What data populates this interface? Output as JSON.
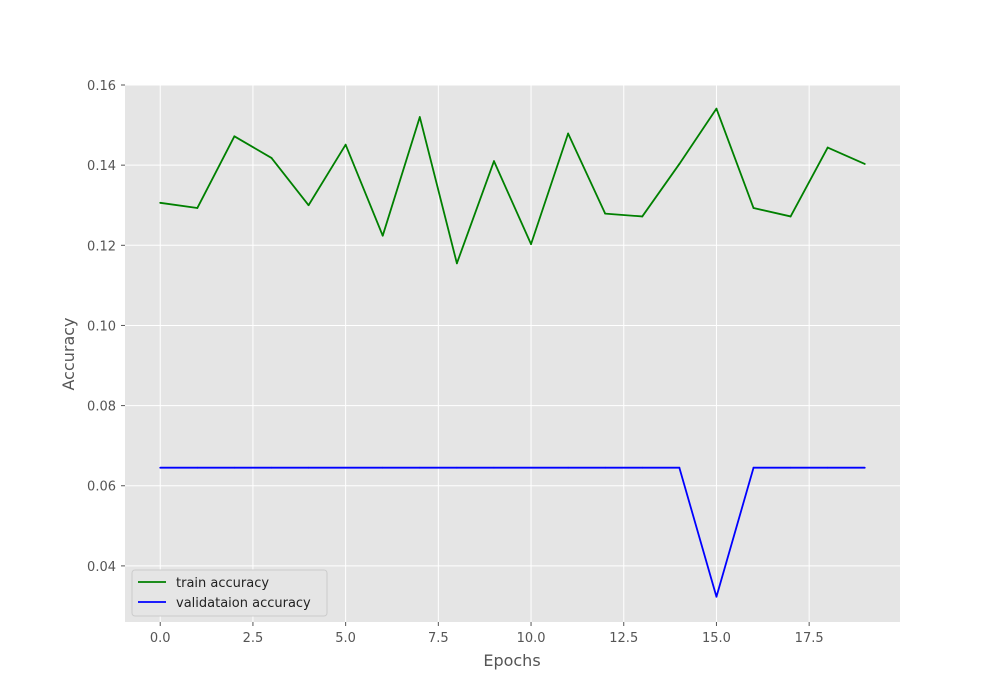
{
  "chart_data": {
    "type": "line",
    "title": "",
    "xlabel": "Epochs",
    "ylabel": "Accuracy",
    "xlim": [
      -0.95,
      19.95
    ],
    "ylim": [
      0.026,
      0.16
    ],
    "x_ticks": [
      0.0,
      2.5,
      5.0,
      7.5,
      10.0,
      12.5,
      15.0,
      17.5
    ],
    "x_tick_labels": [
      "0.0",
      "2.5",
      "5.0",
      "7.5",
      "10.0",
      "12.5",
      "15.0",
      "17.5"
    ],
    "y_ticks": [
      0.04,
      0.06,
      0.08,
      0.1,
      0.12,
      0.14,
      0.16
    ],
    "y_tick_labels": [
      "0.04",
      "0.06",
      "0.08",
      "0.10",
      "0.12",
      "0.14",
      "0.16"
    ],
    "grid": true,
    "legend_position": "lower-left",
    "x": [
      0,
      1,
      2,
      3,
      4,
      5,
      6,
      7,
      8,
      9,
      10,
      11,
      12,
      13,
      14,
      15,
      16,
      17,
      18,
      19
    ],
    "series": [
      {
        "name": "train accuracy",
        "color": "#008000",
        "values": [
          0.1306,
          0.1293,
          0.1472,
          0.1418,
          0.13,
          0.1451,
          0.1224,
          0.152,
          0.1155,
          0.141,
          0.1203,
          0.1479,
          0.1279,
          0.1272,
          0.1403,
          0.1541,
          0.1293,
          0.1272,
          0.1444,
          0.1403
        ]
      },
      {
        "name": "validataion accuracy",
        "color": "#0000ff",
        "values": [
          0.0645,
          0.0645,
          0.0645,
          0.0645,
          0.0645,
          0.0645,
          0.0645,
          0.0645,
          0.0645,
          0.0645,
          0.0645,
          0.0645,
          0.0645,
          0.0645,
          0.0645,
          0.0323,
          0.0645,
          0.0645,
          0.0645,
          0.0645
        ]
      }
    ]
  },
  "colors": {
    "plot_background": "#e5e5e5",
    "grid": "#ffffff",
    "text": "#555555"
  }
}
